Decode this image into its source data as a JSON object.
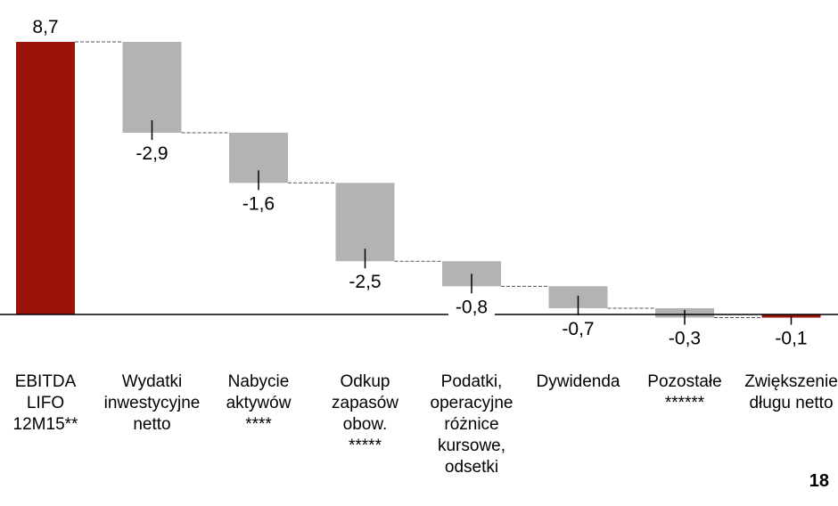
{
  "page_number": "18",
  "colors": {
    "total": "#9b1208",
    "negative": "#b3b3b1",
    "connector": "#555555",
    "axis": "#000000"
  },
  "chart_data": {
    "type": "bar",
    "subtype": "waterfall",
    "title": "",
    "xlabel": "",
    "ylabel": "",
    "categories": [
      "EBITDA\nLIFO\n12M15**",
      "Wydatki\ninwestycyjne\nnetto",
      "Nabycie\naktywów\n****",
      "Odkup\nzapasów\nobow.\n*****",
      "Podatki,\noperacyjne\nróżnice\nkursowe,\nodsetki",
      "Dywidenda",
      "Pozostałe\n******",
      "Zwiększenie\ndługu netto"
    ],
    "values": [
      8.7,
      -2.9,
      -1.6,
      -2.5,
      -0.8,
      -0.7,
      -0.3,
      -0.1
    ],
    "value_labels": [
      "8,7",
      "-2,9",
      "-1,6",
      "-2,5",
      "-0,8",
      "-0,7",
      "-0,3",
      "-0,1"
    ],
    "bar_kind": [
      "total",
      "change",
      "change",
      "change",
      "change",
      "change",
      "change",
      "total"
    ],
    "ylim": [
      0,
      8.7
    ],
    "grid": false,
    "legend": "none"
  }
}
